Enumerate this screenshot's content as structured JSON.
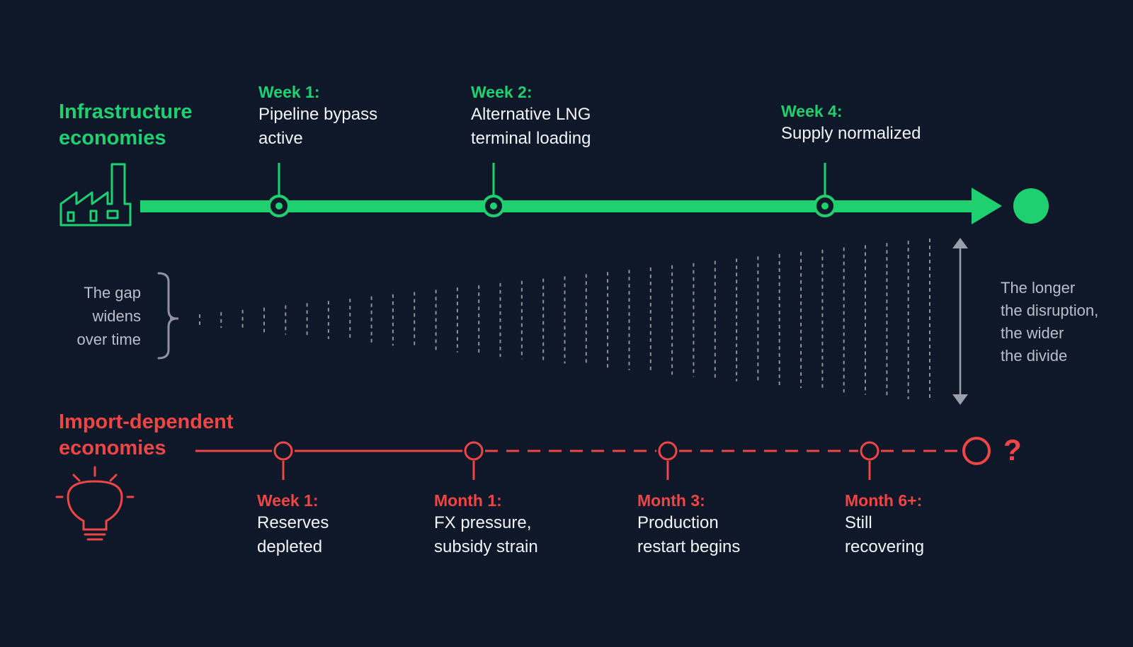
{
  "top_band": {
    "title_line1": "Infrastructure",
    "title_line2": "economies",
    "icon": "factory-icon",
    "color": "#1fd070",
    "milestones": [
      {
        "label": "Week 1:",
        "line1": "Pipeline bypass",
        "line2": "active"
      },
      {
        "label": "Week 2:",
        "line1": "Alternative LNG",
        "line2": "terminal loading"
      },
      {
        "label": "Week 4:",
        "line1": "Supply normalized",
        "line2": ""
      }
    ]
  },
  "gap": {
    "left_line1": "The gap",
    "left_line2": "widens",
    "left_line3": "over time",
    "right_line1": "The longer",
    "right_line2": "the disruption,",
    "right_line3": "the wider",
    "right_line4": "the divide"
  },
  "bottom_band": {
    "title_line1": "Import-dependent",
    "title_line2": "economies",
    "icon": "lightbulb-icon",
    "color": "#ee4545",
    "end_marker": "?",
    "milestones": [
      {
        "label": "Week 1:",
        "line1": "Reserves",
        "line2": "depleted"
      },
      {
        "label": "Month 1:",
        "line1": "FX pressure,",
        "line2": "subsidy strain"
      },
      {
        "label": "Month 3:",
        "line1": "Production",
        "line2": "restart begins"
      },
      {
        "label": "Month 6+:",
        "line1": "Still",
        "line2": "recovering"
      }
    ]
  }
}
